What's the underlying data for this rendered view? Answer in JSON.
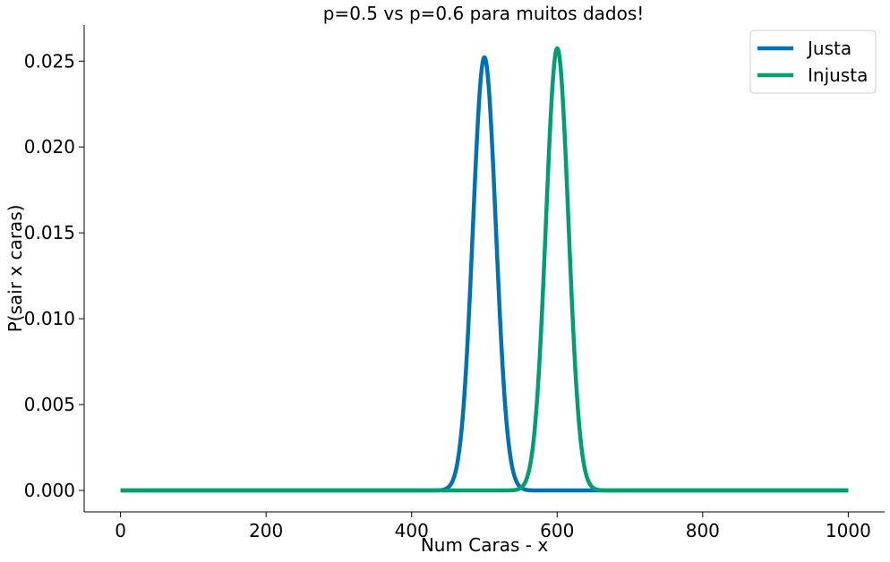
{
  "chart_data": {
    "type": "line",
    "title": "p=0.5 vs p=0.6 para muitos dados!",
    "xlabel": "Num Caras - x",
    "ylabel": "P(sair x caras)",
    "xlim": [
      -50,
      1050
    ],
    "ylim": [
      -0.00125,
      0.0271
    ],
    "x_ticks": [
      0,
      200,
      400,
      600,
      800,
      1000
    ],
    "x_tick_labels": [
      "0",
      "200",
      "400",
      "600",
      "800",
      "1000"
    ],
    "y_ticks": [
      0.0,
      0.005,
      0.01,
      0.015,
      0.02,
      0.025
    ],
    "y_tick_labels": [
      "0.000",
      "0.005",
      "0.010",
      "0.015",
      "0.020",
      "0.025"
    ],
    "grid": false,
    "legend_position": "top-right",
    "n_trials": 1000,
    "series": [
      {
        "name": "Justa",
        "p": 0.5,
        "color": "#0072b2",
        "peak_x": 500,
        "peak_y": 0.0252
      },
      {
        "name": "Injusta",
        "p": 0.6,
        "color": "#009e73",
        "peak_x": 600,
        "peak_y": 0.0257
      }
    ]
  }
}
